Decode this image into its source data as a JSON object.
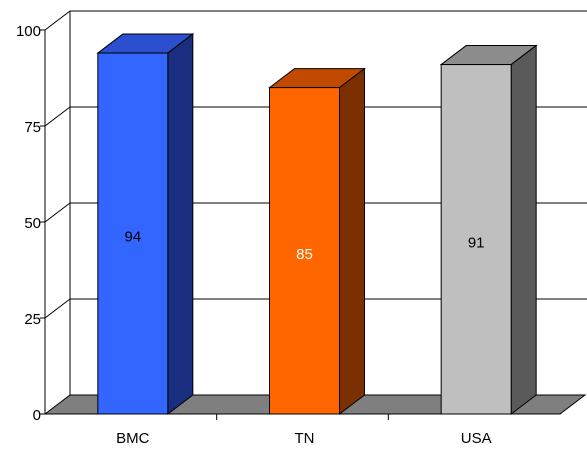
{
  "chart_data": {
    "type": "bar",
    "categories": [
      "BMC",
      "TN",
      "USA"
    ],
    "values": [
      94,
      85,
      91
    ],
    "data_labels": [
      "94",
      "85",
      "91"
    ],
    "ylim": [
      0,
      100
    ],
    "yticks": [
      0,
      25,
      50,
      75,
      100
    ],
    "ytick_labels": [
      "0",
      "25",
      "50",
      "75",
      "100"
    ],
    "grid": true,
    "three_d": true,
    "colors": [
      {
        "front": "#3366ff",
        "top": "#2c4fd0",
        "side": "#1a2e80",
        "label": "#000000"
      },
      {
        "front": "#ff6600",
        "top": "#c24a00",
        "side": "#7a3000",
        "label": "#ffffff"
      },
      {
        "front": "#bfbfbf",
        "top": "#8c8c8c",
        "side": "#5a5a5a",
        "label": "#000000"
      }
    ]
  }
}
